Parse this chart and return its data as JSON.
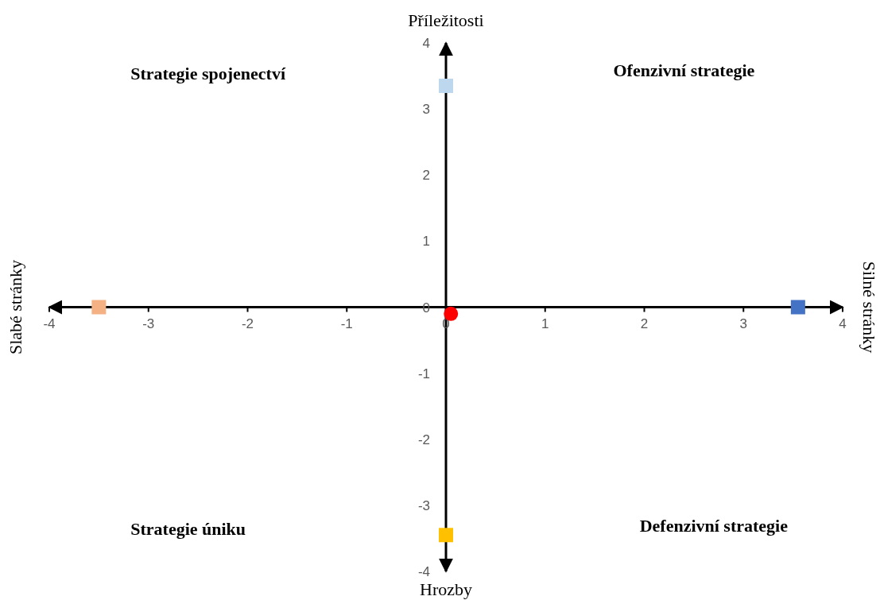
{
  "chart_data": {
    "type": "scatter",
    "ylabel": "Příležitosti",
    "annotations": [
      "Strategie spojenectví",
      "Ofenzivní strategie",
      "Strategie úniku",
      "Defenzivní strategie",
      "Slabé stránky",
      "Hrozby",
      "Silné stránky"
    ],
    "xlim": [
      -4,
      4
    ],
    "ylim": [
      -4,
      4
    ],
    "xticks": [
      -4,
      -3,
      -2,
      -1,
      0,
      1,
      2,
      3,
      4
    ],
    "yticks": [
      -4,
      -3,
      -2,
      -1,
      0,
      1,
      2,
      3,
      4
    ],
    "grid": false,
    "series": [
      {
        "x": [
          0,
          -3.5,
          3.55,
          0
        ],
        "values": [
          3.35,
          0,
          0,
          -3.45
        ],
        "colors": [
          "#bdd7ee",
          "#f4b183",
          "#4472c4",
          "#ffc000"
        ],
        "marker": "square"
      },
      {
        "x": [
          0.05
        ],
        "values": [
          -0.1
        ],
        "color": "#ff0000",
        "marker": "circle"
      }
    ]
  }
}
